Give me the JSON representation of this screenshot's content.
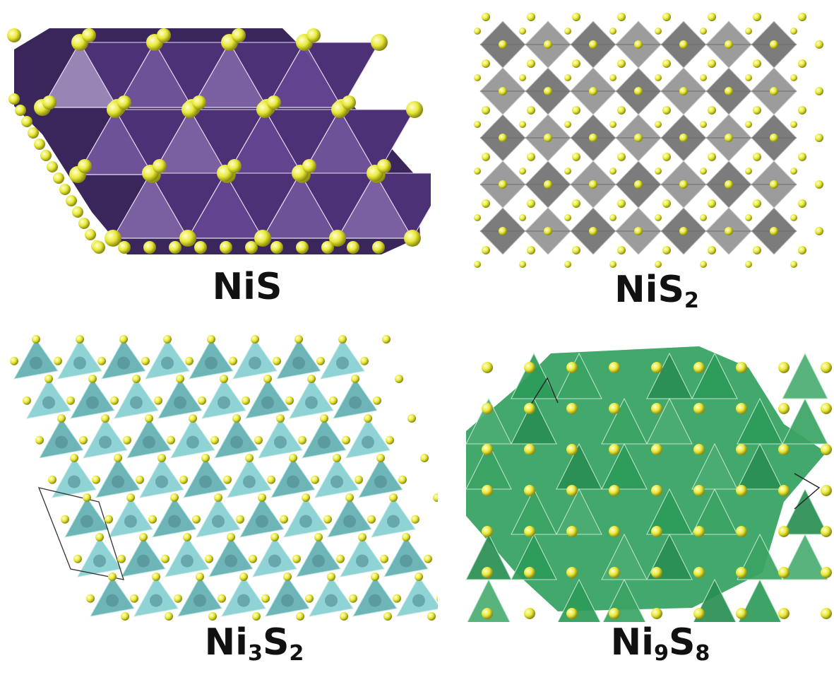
{
  "panels": [
    {
      "formula": "NiS",
      "parts": [
        {
          "t": "NiS",
          "sub": false
        }
      ],
      "polyhedron_color": "#5b3a8c",
      "atom_color": "#e8e839"
    },
    {
      "formula": "NiS2",
      "parts": [
        {
          "t": "NiS",
          "sub": false
        },
        {
          "t": "2",
          "sub": true
        }
      ],
      "polyhedron_color": "#8a8a8a",
      "atom_color": "#e8e839"
    },
    {
      "formula": "Ni3S2",
      "parts": [
        {
          "t": "Ni",
          "sub": false
        },
        {
          "t": "3",
          "sub": true
        },
        {
          "t": "S",
          "sub": false
        },
        {
          "t": "2",
          "sub": true
        }
      ],
      "polyhedron_color": "#6fc7c9",
      "atom_color": "#e8e839"
    },
    {
      "formula": "Ni9S8",
      "parts": [
        {
          "t": "Ni",
          "sub": false
        },
        {
          "t": "9",
          "sub": true
        },
        {
          "t": "S",
          "sub": false
        },
        {
          "t": "8",
          "sub": true
        }
      ],
      "polyhedron_color": "#2e9e5b",
      "atom_color": "#e8e839"
    }
  ]
}
